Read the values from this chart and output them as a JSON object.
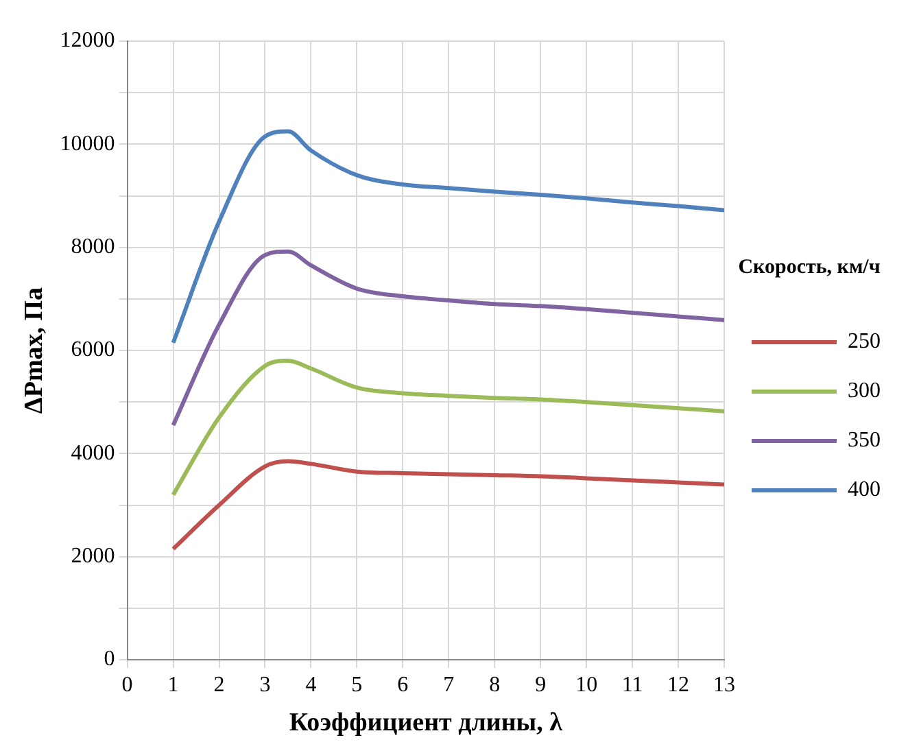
{
  "chart_data": {
    "type": "line",
    "xlabel": "Коэффициент длины, λ",
    "ylabel": "ΔPmax, Па",
    "legend_title": "Скорость, км/ч",
    "legend": "right",
    "grid": true,
    "marker": "none",
    "line_style": "solid",
    "x": [
      1,
      2,
      3,
      3.5,
      4,
      5,
      6,
      7,
      8,
      9,
      10,
      11,
      12,
      13
    ],
    "xlim": [
      0,
      13
    ],
    "xticks": [
      0,
      1,
      2,
      3,
      4,
      5,
      6,
      7,
      8,
      9,
      10,
      11,
      12,
      13
    ],
    "ylim": [
      0,
      12000
    ],
    "yticks": [
      0,
      {
        "value": 1000,
        "label": null
      },
      2000,
      {
        "value": 3000,
        "label": null
      },
      4000,
      {
        "value": 5000,
        "label": null
      },
      6000,
      {
        "value": 7000,
        "label": null
      },
      8000,
      {
        "value": 9000,
        "label": null
      },
      10000,
      {
        "value": 11000,
        "label": null
      },
      12000
    ],
    "series": [
      {
        "name": "250",
        "color": "#c0504d",
        "values": [
          2150,
          3000,
          3750,
          3850,
          3800,
          3650,
          3620,
          3600,
          3580,
          3560,
          3520,
          3480,
          3440,
          3400
        ]
      },
      {
        "name": "300",
        "color": "#9bbb59",
        "values": [
          3200,
          4700,
          5700,
          5800,
          5650,
          5280,
          5170,
          5120,
          5080,
          5050,
          5000,
          4940,
          4880,
          4820
        ]
      },
      {
        "name": "350",
        "color": "#8064a2",
        "values": [
          4550,
          6500,
          7850,
          7920,
          7650,
          7200,
          7050,
          6970,
          6900,
          6860,
          6800,
          6730,
          6660,
          6590
        ]
      },
      {
        "name": "400",
        "color": "#4f81bd",
        "values": [
          6150,
          8500,
          10150,
          10250,
          9880,
          9400,
          9220,
          9150,
          9080,
          9020,
          8950,
          8870,
          8800,
          8720
        ]
      }
    ]
  }
}
